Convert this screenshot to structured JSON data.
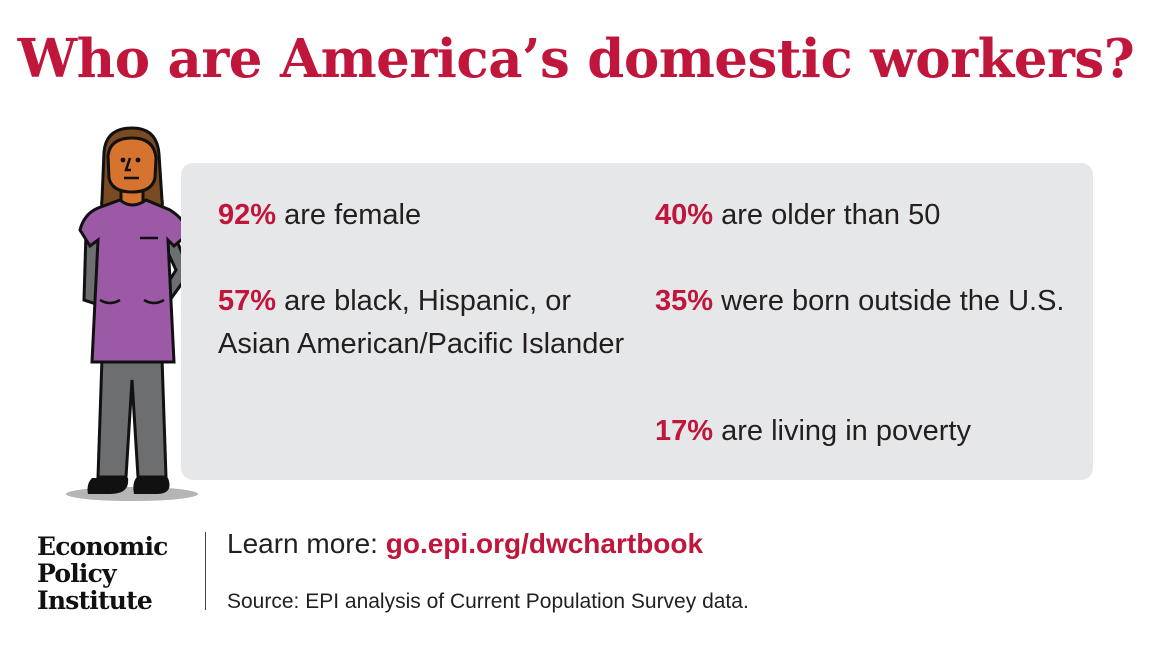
{
  "title": "Who are America’s domestic workers?",
  "stats": [
    {
      "pct": "92%",
      "text": "are female"
    },
    {
      "pct": "57%",
      "text": "are black, Hispanic, or Asian American/Pacific Islander"
    },
    {
      "pct": "40%",
      "text": "are older than 50"
    },
    {
      "pct": "35%",
      "text": "were born outside the U.S."
    },
    {
      "pct": "17%",
      "text": "are living in poverty"
    }
  ],
  "logo": {
    "line1": "Economic",
    "line2": "Policy",
    "line3": "Institute"
  },
  "footer": {
    "learn_label": "Learn more:",
    "learn_link": "go.epi.org/dwchartbook",
    "source": "Source: EPI analysis of Current Population Survey data."
  },
  "colors": {
    "accent": "#c0163b",
    "panel": "#e6e7e8",
    "shirt": "#9b59a6",
    "skin": "#d6732e"
  },
  "illustration": {
    "icon": "domestic-worker-illustration"
  }
}
